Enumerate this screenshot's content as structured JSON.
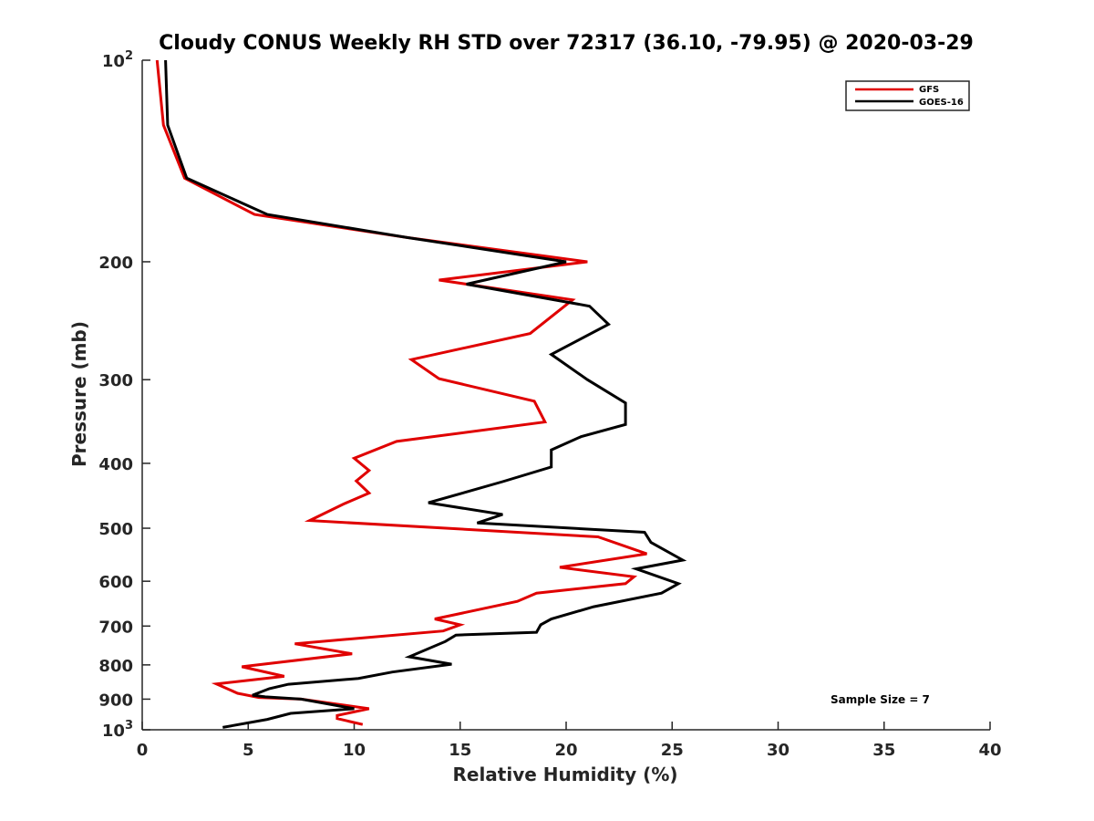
{
  "chart_data": {
    "type": "line",
    "title": "Cloudy CONUS Weekly RH STD over 72317 (36.10, -79.95) @ 2020-03-29",
    "xlabel": "Relative Humidity (%)",
    "ylabel": "Pressure (mb)",
    "xlim": [
      0,
      40
    ],
    "ylim": [
      100,
      1000
    ],
    "y_scale": "log",
    "y_reversed": true,
    "xticks": [
      0,
      5,
      10,
      15,
      20,
      25,
      30,
      35,
      40
    ],
    "yticks": [
      {
        "value": 100,
        "label": "10",
        "sup": "2"
      },
      {
        "value": 200,
        "label": "200",
        "sup": ""
      },
      {
        "value": 300,
        "label": "300",
        "sup": ""
      },
      {
        "value": 400,
        "label": "400",
        "sup": ""
      },
      {
        "value": 500,
        "label": "500",
        "sup": ""
      },
      {
        "value": 600,
        "label": "600",
        "sup": ""
      },
      {
        "value": 700,
        "label": "700",
        "sup": ""
      },
      {
        "value": 800,
        "label": "800",
        "sup": ""
      },
      {
        "value": 900,
        "label": "900",
        "sup": ""
      },
      {
        "value": 1000,
        "label": "10",
        "sup": "3"
      }
    ],
    "legend_position": "top-right",
    "grid": false,
    "annotation": "Sample Size = 7",
    "series": [
      {
        "name": "GFS",
        "color": "#e00000",
        "points": [
          [
            0.7,
            100
          ],
          [
            1.0,
            125
          ],
          [
            2.0,
            150
          ],
          [
            5.3,
            170
          ],
          [
            12.5,
            184
          ],
          [
            21.0,
            200
          ],
          [
            14.0,
            213
          ],
          [
            20.3,
            228
          ],
          [
            18.3,
            256
          ],
          [
            12.7,
            280
          ],
          [
            14.0,
            299
          ],
          [
            18.5,
            323
          ],
          [
            19.0,
            347
          ],
          [
            12.0,
            371
          ],
          [
            10.0,
            393
          ],
          [
            10.7,
            410
          ],
          [
            10.1,
            425
          ],
          [
            10.7,
            443
          ],
          [
            9.5,
            460
          ],
          [
            7.9,
            487
          ],
          [
            21.5,
            515
          ],
          [
            23.8,
            546
          ],
          [
            19.7,
            572
          ],
          [
            23.2,
            591
          ],
          [
            22.8,
            605
          ],
          [
            18.6,
            625
          ],
          [
            17.7,
            643
          ],
          [
            13.8,
            683
          ],
          [
            15.0,
            697
          ],
          [
            14.2,
            712
          ],
          [
            7.2,
            744
          ],
          [
            9.9,
            770
          ],
          [
            4.7,
            805
          ],
          [
            6.7,
            832
          ],
          [
            3.5,
            854
          ],
          [
            4.5,
            882
          ],
          [
            5.5,
            895
          ],
          [
            7.5,
            900
          ],
          [
            10.7,
            930
          ],
          [
            9.2,
            952
          ],
          [
            9.2,
            962
          ],
          [
            10.4,
            982
          ]
        ]
      },
      {
        "name": "GOES-16",
        "color": "#000000",
        "points": [
          [
            1.1,
            100
          ],
          [
            1.2,
            125
          ],
          [
            2.1,
            150
          ],
          [
            5.9,
            170
          ],
          [
            12.5,
            184
          ],
          [
            20.0,
            200
          ],
          [
            15.3,
            216
          ],
          [
            21.1,
            233
          ],
          [
            22.0,
            248
          ],
          [
            19.3,
            275
          ],
          [
            21.0,
            300
          ],
          [
            22.8,
            325
          ],
          [
            22.8,
            350
          ],
          [
            20.7,
            365
          ],
          [
            19.3,
            382
          ],
          [
            19.3,
            405
          ],
          [
            17.0,
            426
          ],
          [
            13.5,
            458
          ],
          [
            17.0,
            477
          ],
          [
            15.8,
            491
          ],
          [
            23.7,
            507
          ],
          [
            24.0,
            525
          ],
          [
            25.5,
            558
          ],
          [
            23.3,
            575
          ],
          [
            25.3,
            605
          ],
          [
            24.5,
            625
          ],
          [
            21.3,
            655
          ],
          [
            19.3,
            683
          ],
          [
            18.8,
            697
          ],
          [
            18.6,
            715
          ],
          [
            14.8,
            722
          ],
          [
            14.3,
            738
          ],
          [
            12.6,
            778
          ],
          [
            14.6,
            798
          ],
          [
            11.8,
            820
          ],
          [
            10.2,
            838
          ],
          [
            6.9,
            855
          ],
          [
            6.0,
            868
          ],
          [
            5.2,
            888
          ],
          [
            5.8,
            893
          ],
          [
            7.5,
            900
          ],
          [
            10.0,
            930
          ],
          [
            7.0,
            945
          ],
          [
            5.9,
            965
          ],
          [
            3.8,
            992
          ]
        ]
      }
    ]
  }
}
